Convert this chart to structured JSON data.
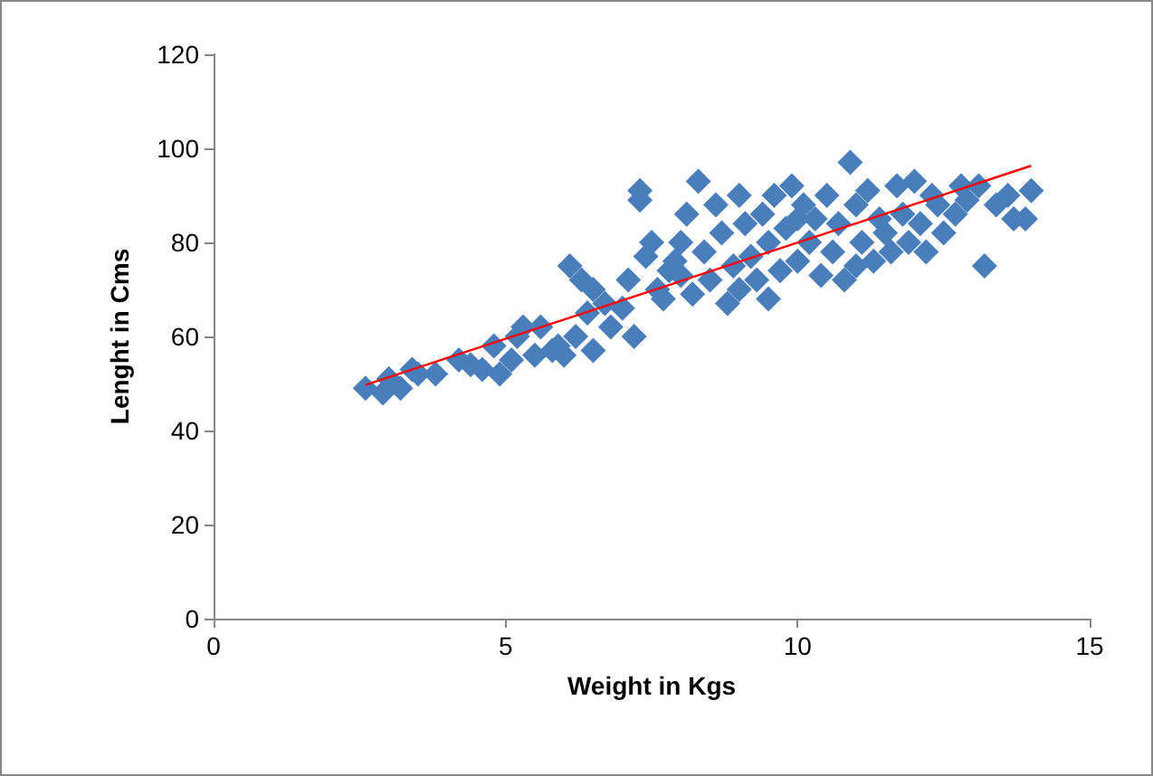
{
  "chart_data": {
    "type": "scatter",
    "xlabel": "Weight in Kgs",
    "ylabel": "Lenght in Cms",
    "xlim": [
      0,
      15
    ],
    "xticks": [
      0,
      5,
      10,
      15
    ],
    "ylim": [
      0,
      120
    ],
    "yticks": [
      0,
      20,
      40,
      60,
      80,
      100,
      120
    ],
    "marker": "diamond",
    "series": [
      {
        "color": "#4a7ebb",
        "x": [
          2.6,
          2.9,
          3.0,
          3.2,
          3.4,
          3.5,
          3.8,
          4.2,
          4.4,
          4.6,
          4.8,
          4.9,
          5.1,
          5.2,
          5.3,
          5.5,
          5.6,
          5.8,
          5.9,
          6.0,
          6.1,
          6.2,
          6.3,
          6.4,
          6.5,
          6.5,
          6.7,
          6.8,
          7.0,
          7.1,
          7.2,
          7.3,
          7.3,
          7.4,
          7.5,
          7.6,
          7.7,
          7.8,
          8.0,
          8.1,
          8.2,
          8.3,
          8.4,
          8.5,
          8.6,
          8.7,
          8.8,
          8.9,
          9.0,
          9.0,
          9.1,
          9.2,
          9.3,
          9.4,
          9.5,
          9.6,
          9.7,
          9.8,
          9.9,
          10.0,
          10.1,
          10.2,
          10.3,
          10.4,
          10.5,
          10.6,
          10.7,
          10.8,
          10.9,
          11.0,
          11.1,
          11.2,
          11.3,
          11.4,
          11.5,
          11.6,
          11.7,
          11.8,
          11.9,
          12.0,
          12.1,
          12.2,
          12.4,
          12.5,
          12.7,
          12.8,
          12.9,
          13.1,
          13.2,
          13.4,
          13.6,
          13.7,
          13.9,
          14.0,
          8.0,
          9.5,
          10.0,
          11.0,
          12.3,
          7.9
        ],
        "values": [
          49,
          48,
          51,
          49,
          53,
          52,
          52,
          55,
          54,
          53,
          58,
          52,
          55,
          60,
          62,
          56,
          62,
          57,
          58,
          56,
          75,
          60,
          72,
          65,
          57,
          70,
          67,
          62,
          66,
          72,
          60,
          91,
          89,
          77,
          80,
          70,
          68,
          74,
          73,
          86,
          69,
          93,
          78,
          72,
          88,
          82,
          67,
          75,
          90,
          70,
          84,
          77,
          72,
          86,
          80,
          90,
          74,
          83,
          92,
          76,
          88,
          80,
          85,
          73,
          90,
          78,
          84,
          72,
          97,
          88,
          80,
          91,
          76,
          85,
          82,
          78,
          92,
          86,
          80,
          93,
          84,
          78,
          88,
          82,
          86,
          92,
          89,
          92,
          75,
          88,
          90,
          85,
          85,
          91,
          80,
          68,
          85,
          75,
          90,
          76
        ]
      },
      {
        "type": "line",
        "color": "#ff0000",
        "marker": "none",
        "x": [
          2.6,
          14.0
        ],
        "values": [
          49.7,
          96.3
        ]
      }
    ]
  }
}
